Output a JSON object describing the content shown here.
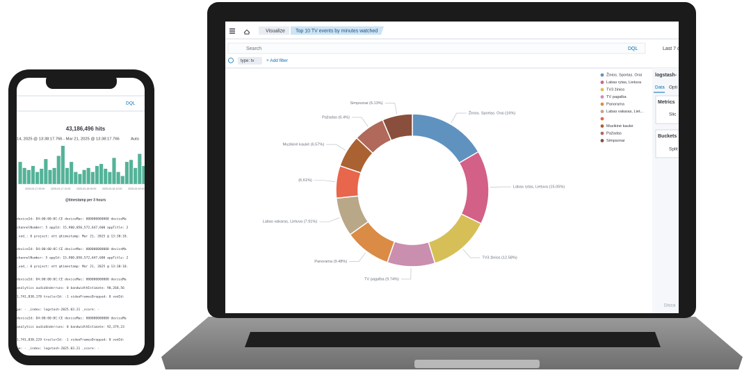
{
  "laptop": {
    "nav": {
      "breadcrumb_1": "Visualize",
      "breadcrumb_2": "Top 10 TV events by minutes watched"
    },
    "search": {
      "placeholder": "Search",
      "language": "DQL",
      "time": "Last 7 d"
    },
    "filters": {
      "filter": "type: tv",
      "add": "+ Add filter"
    },
    "side_panel": {
      "index": "logstash-",
      "tab_data": "Data",
      "tab_options": "Opti",
      "metrics": "Metrics",
      "slice": "Slic",
      "buckets": "Buckets",
      "split": "Split",
      "discard": "Disca"
    }
  },
  "chart_data": {
    "type": "donut",
    "categories": [
      "Žinios. Sportas. Orai",
      "Labas rytas, Lietuva",
      "TV3 žinios",
      "TV pagalba",
      "Panorama",
      "Labas vakaras, Liet...",
      null,
      "Muzikinė kaukė",
      "Pažadas",
      "Simpsonai"
    ],
    "values": [
      16,
      15.05,
      12.58,
      9.74,
      9.48,
      7.91,
      6.61,
      6.57,
      6.4,
      6.13
    ],
    "value_labels": [
      "Žinios. Sportas. Orai (16%)",
      "Labas rytas, Lietuva (15.05%)",
      "TV3 žinios (12.58%)",
      "TV pagalba (9.74%)",
      "Panorama (9.48%)",
      "Labas vakaras, Lietuva (7.91%)",
      "(6.61%)",
      "Muzikinė kaukė (6.57%)",
      "Pažadas (6.4%)",
      "Simpsonai (6.13%)"
    ],
    "colors": [
      "#6092c0",
      "#d36086",
      "#d6bf57",
      "#ca8eae",
      "#da8b45",
      "#b9a888",
      "#e7664c",
      "#aa6232",
      "#b0695a",
      "#8a4e3c"
    ],
    "legend": "right"
  },
  "phone": {
    "language": "DQL",
    "hits": "43,186,496 hits",
    "range": "14, 2025 @ 13:38:17.766 - Mar 21, 2025 @ 13:38:17.766",
    "interval": "Auto",
    "histogram": {
      "values": [
        55,
        40,
        35,
        45,
        30,
        38,
        62,
        35,
        40,
        70,
        95,
        40,
        55,
        30,
        25,
        35,
        40,
        30,
        45,
        50,
        38,
        30,
        65,
        30,
        20,
        55,
        60,
        40,
        75,
        45
      ],
      "xticks": [
        "2025-03-17 00:00",
        "2025-03-17 12:00",
        "2025-03-18 00:00",
        "2025-03-18 12:00",
        "2025-03-19 00:00",
        "2025-03"
      ],
      "xlabel": "@timestamp per 3 hours"
    },
    "docs": [
      "deviceId: D4:00:00:0C:CE  deviceMac: 000000000000  deviceMa",
      "channelNumber: 5  appId: 15,900,050,572,647,600  appTitle: 2",
      "_vod_: 0  project: ott  @timestamp: Mar 21, 2025 @ 13:38:18.",
      "deviceId: D4:00:00:0C:CE  deviceMac: 000000000000  deviceMa",
      "channelNumber: 5  appId: 15,900,050,572,647,600  appTitle: 2",
      "_vod_: 0  project: ott  @timestamp: Mar 21, 2025 @ 13:38:18.",
      "deviceId: D4:00:00:0C:CE  deviceMac: 000000000000  deviceMa",
      "analytics  audioUnderruns: 0  bandwidthEstimate: 90,268,56",
      "1,741,838,178  trailerId: -1  videoFramesDropped: 0  vodId:",
      "pe: -  _index: logstash-2025.03.21  _score: -",
      "deviceId: D4:00:00:0C:CE  deviceMac: 000000000000  deviceMa",
      "analytics  audioUnderruns: 0  bandwidthEstimate: 92,379,23",
      "1,741,838,229  trailerId: -1  videoFramesDropped: 0  vodId:",
      "pe: -  _index: logstash-2025.03.21  _score: -"
    ]
  }
}
